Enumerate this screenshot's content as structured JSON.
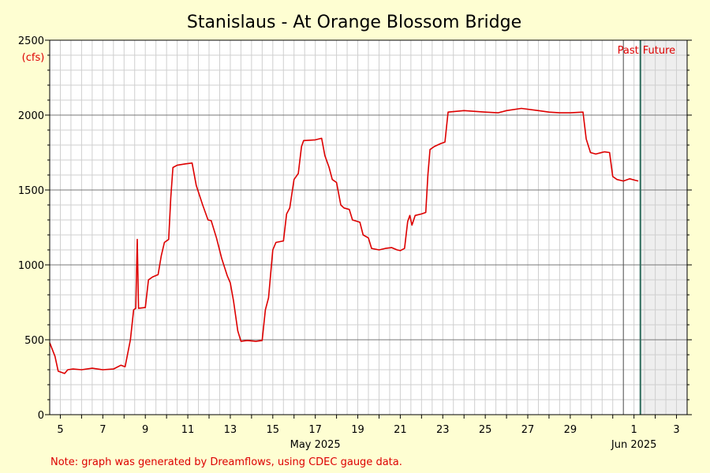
{
  "chart_data": {
    "type": "line",
    "title": "Stanislaus - At Orange Blossom Bridge",
    "ylabel": "(cfs)",
    "ylim": [
      0,
      2500
    ],
    "y_ticks": [
      0,
      500,
      1000,
      1500,
      2000,
      2500
    ],
    "x_axis": {
      "start_day": 4.5,
      "end_day": 34.5,
      "tick_labels": [
        {
          "day": 5,
          "label": "5"
        },
        {
          "day": 7,
          "label": "7"
        },
        {
          "day": 9,
          "label": "9"
        },
        {
          "day": 11,
          "label": "11"
        },
        {
          "day": 13,
          "label": "13"
        },
        {
          "day": 15,
          "label": "15"
        },
        {
          "day": 17,
          "label": "17"
        },
        {
          "day": 19,
          "label": "19"
        },
        {
          "day": 21,
          "label": "21"
        },
        {
          "day": 23,
          "label": "23"
        },
        {
          "day": 25,
          "label": "25"
        },
        {
          "day": 27,
          "label": "27"
        },
        {
          "day": 29,
          "label": "29"
        },
        {
          "day": 32,
          "label": "1"
        },
        {
          "day": 34,
          "label": "3"
        }
      ],
      "month_labels": [
        {
          "day": 17,
          "label": "May 2025"
        },
        {
          "day": 32,
          "label": "Jun 2025"
        }
      ]
    },
    "now_day": 32.3,
    "past_label": "Past",
    "future_label": "Future",
    "grid": true,
    "series": [
      {
        "color": "#dd0000",
        "points": [
          [
            4.5,
            480
          ],
          [
            4.75,
            390
          ],
          [
            4.9,
            290
          ],
          [
            5.2,
            275
          ],
          [
            5.35,
            300
          ],
          [
            5.6,
            305
          ],
          [
            6.0,
            300
          ],
          [
            6.5,
            310
          ],
          [
            7.0,
            300
          ],
          [
            7.5,
            305
          ],
          [
            7.85,
            330
          ],
          [
            8.05,
            320
          ],
          [
            8.3,
            500
          ],
          [
            8.45,
            700
          ],
          [
            8.55,
            710
          ],
          [
            8.62,
            1170
          ],
          [
            8.68,
            710
          ],
          [
            9.0,
            715
          ],
          [
            9.15,
            900
          ],
          [
            9.35,
            920
          ],
          [
            9.6,
            935
          ],
          [
            9.75,
            1060
          ],
          [
            9.9,
            1150
          ],
          [
            10.1,
            1170
          ],
          [
            10.2,
            1450
          ],
          [
            10.3,
            1650
          ],
          [
            10.5,
            1665
          ],
          [
            10.9,
            1675
          ],
          [
            11.2,
            1680
          ],
          [
            11.4,
            1530
          ],
          [
            11.7,
            1400
          ],
          [
            11.95,
            1300
          ],
          [
            12.1,
            1295
          ],
          [
            12.35,
            1180
          ],
          [
            12.6,
            1040
          ],
          [
            12.85,
            930
          ],
          [
            13.0,
            880
          ],
          [
            13.15,
            760
          ],
          [
            13.35,
            560
          ],
          [
            13.5,
            490
          ],
          [
            13.8,
            495
          ],
          [
            14.2,
            490
          ],
          [
            14.5,
            495
          ],
          [
            14.65,
            700
          ],
          [
            14.8,
            780
          ],
          [
            15.0,
            1100
          ],
          [
            15.15,
            1150
          ],
          [
            15.5,
            1160
          ],
          [
            15.65,
            1340
          ],
          [
            15.8,
            1380
          ],
          [
            16.0,
            1570
          ],
          [
            16.2,
            1610
          ],
          [
            16.35,
            1790
          ],
          [
            16.45,
            1830
          ],
          [
            17.0,
            1835
          ],
          [
            17.3,
            1845
          ],
          [
            17.45,
            1730
          ],
          [
            17.65,
            1650
          ],
          [
            17.8,
            1570
          ],
          [
            18.0,
            1550
          ],
          [
            18.2,
            1400
          ],
          [
            18.35,
            1380
          ],
          [
            18.6,
            1370
          ],
          [
            18.75,
            1300
          ],
          [
            19.1,
            1285
          ],
          [
            19.25,
            1200
          ],
          [
            19.5,
            1180
          ],
          [
            19.65,
            1110
          ],
          [
            20.0,
            1100
          ],
          [
            20.3,
            1110
          ],
          [
            20.6,
            1115
          ],
          [
            20.85,
            1100
          ],
          [
            21.0,
            1095
          ],
          [
            21.2,
            1110
          ],
          [
            21.35,
            1290
          ],
          [
            21.45,
            1330
          ],
          [
            21.55,
            1265
          ],
          [
            21.7,
            1330
          ],
          [
            22.0,
            1340
          ],
          [
            22.2,
            1350
          ],
          [
            22.3,
            1600
          ],
          [
            22.4,
            1770
          ],
          [
            22.6,
            1790
          ],
          [
            22.9,
            1810
          ],
          [
            23.1,
            1820
          ],
          [
            23.25,
            2020
          ],
          [
            23.6,
            2025
          ],
          [
            24.0,
            2030
          ],
          [
            25.0,
            2020
          ],
          [
            25.6,
            2015
          ],
          [
            26.0,
            2030
          ],
          [
            26.7,
            2045
          ],
          [
            27.5,
            2030
          ],
          [
            28.0,
            2020
          ],
          [
            28.5,
            2015
          ],
          [
            29.0,
            2015
          ],
          [
            29.6,
            2020
          ],
          [
            29.75,
            1840
          ],
          [
            29.95,
            1750
          ],
          [
            30.2,
            1740
          ],
          [
            30.6,
            1755
          ],
          [
            30.85,
            1750
          ],
          [
            31.0,
            1590
          ],
          [
            31.2,
            1570
          ],
          [
            31.5,
            1560
          ],
          [
            31.8,
            1575
          ],
          [
            32.05,
            1565
          ],
          [
            32.2,
            1560
          ]
        ]
      }
    ]
  },
  "note": "Note: graph was generated by Dreamflows, using CDEC gauge data."
}
